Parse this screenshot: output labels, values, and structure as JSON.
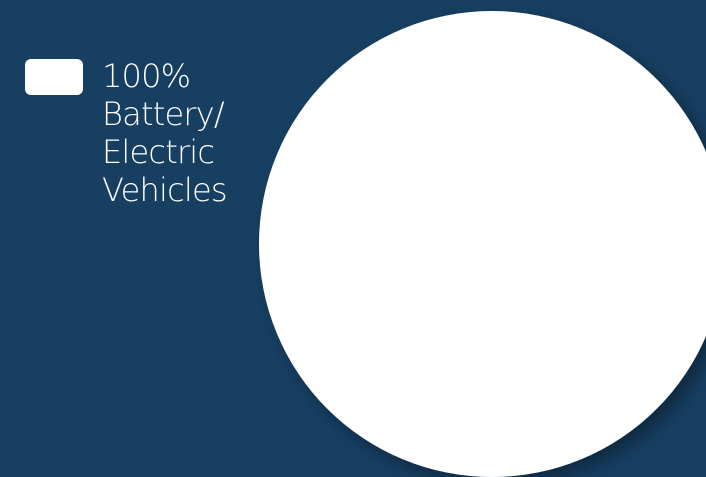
{
  "chart_data": {
    "type": "pie",
    "title": "",
    "legend": "left",
    "background_color": "#173f62",
    "series": [
      {
        "name": "Battery/ Electric Vehicles",
        "label": "100%",
        "value": 100,
        "color": "#ffffff"
      }
    ],
    "legend_entries": [
      {
        "lines": [
          "100%",
          "Battery/",
          "Electric",
          "Vehicles"
        ],
        "color": "#ffffff"
      }
    ]
  }
}
